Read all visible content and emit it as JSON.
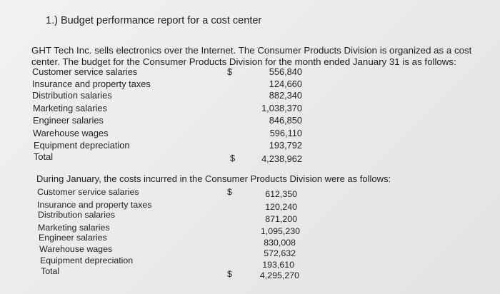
{
  "heading": "1.) Budget performance report for a cost center",
  "intro_line1": "GHT Tech Inc. sells electronics over the Internet. The Consumer Products Division is organized as a cost",
  "intro_line2": "center. The budget for the Consumer Products Division for the month ended January 31 is as follows:",
  "budget": {
    "rows": [
      {
        "label": "Customer service salaries",
        "dollar": "$",
        "value": "556,840"
      },
      {
        "label": "Insurance and property taxes",
        "dollar": "",
        "value": "124,660"
      },
      {
        "label": "Distribution salaries",
        "dollar": "",
        "value": "882,340"
      },
      {
        "label": "Marketing salaries",
        "dollar": "",
        "value": "1,038,370"
      },
      {
        "label": "Engineer salaries",
        "dollar": "",
        "value": "846,850"
      },
      {
        "label": "Warehouse wages",
        "dollar": "",
        "value": "596,110"
      },
      {
        "label": "Equipment depreciation",
        "dollar": "",
        "value": "193,792"
      },
      {
        "label": "Total",
        "dollar": "$",
        "value": "4,238,962"
      }
    ]
  },
  "actual_intro": "During January, the costs incurred in the Consumer Products Division were as follows:",
  "actual": {
    "rows": [
      {
        "label": "Customer service salaries",
        "dollar": "$",
        "value": "612,350"
      },
      {
        "label": "Insurance and property taxes",
        "dollar": "",
        "value": "120,240"
      },
      {
        "label": "Distribution salaries",
        "dollar": "",
        "value": "871,200"
      },
      {
        "label": "Marketing salaries",
        "dollar": "",
        "value": "1,095,230"
      },
      {
        "label": "Engineer salaries",
        "dollar": "",
        "value": "830,008"
      },
      {
        "label": "Warehouse wages",
        "dollar": "",
        "value": "572,632"
      },
      {
        "label": "Equipment depreciation",
        "dollar": "",
        "value": "193,610"
      },
      {
        "label": "Total",
        "dollar": "$",
        "value": "4,295,270"
      }
    ]
  }
}
